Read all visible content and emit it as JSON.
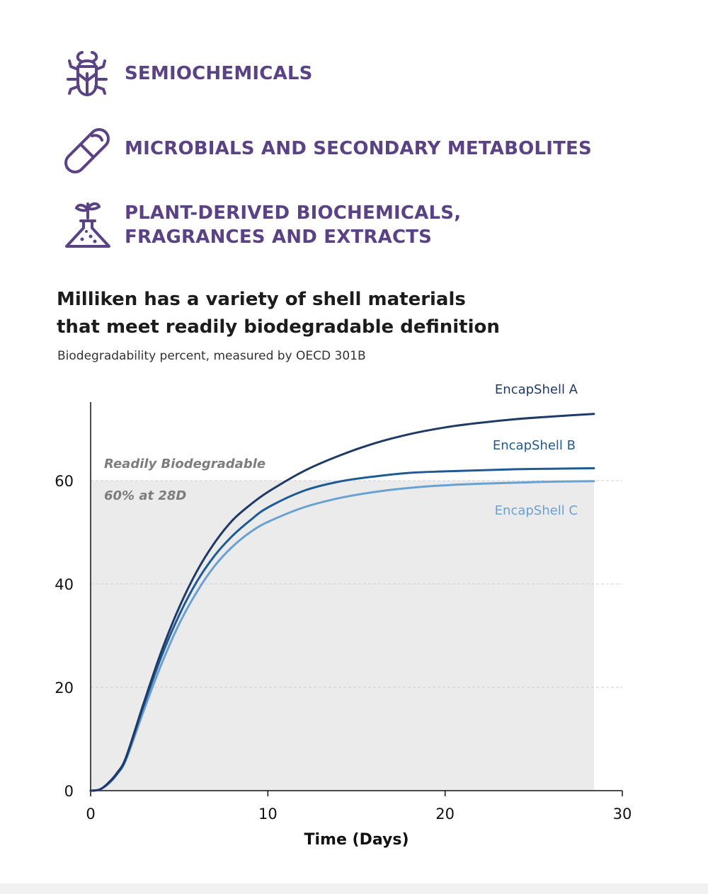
{
  "categories": [
    {
      "icon": "beetle-icon",
      "lines": [
        "SEMIOCHEMICALS"
      ]
    },
    {
      "icon": "capsule-icon",
      "lines": [
        "MICROBIALS AND SECONDARY METABOLITES"
      ]
    },
    {
      "icon": "flask-sprout-icon",
      "lines": [
        "PLANT-DERIVED BIOCHEMICALS,",
        "FRAGRANCES AND EXTRACTS"
      ]
    }
  ],
  "colors": {
    "accent_purple": "#5b4285",
    "series_a": "#1f3a66",
    "series_b": "#1e5a94",
    "series_c": "#6aa1d3",
    "band": "#ebebeb"
  },
  "chart_data": {
    "type": "line",
    "title_lines": [
      "Milliken has a variety of shell materials",
      "that meet readily biodegradable definition"
    ],
    "subtitle": "Biodegradability percent, measured by OECD 301B",
    "xlabel": "Time (Days)",
    "ylabel": "",
    "xlim": [
      0,
      30
    ],
    "ylim": [
      0,
      75
    ],
    "xticks": [
      0,
      10,
      20,
      30
    ],
    "yticks": [
      0,
      20,
      40,
      60
    ],
    "gridlines_y": [
      20,
      40,
      60
    ],
    "threshold": {
      "value": 60,
      "x_end": 28.4,
      "label_lines": [
        "Readily Biodegradable",
        "60% at 28D"
      ]
    },
    "series": [
      {
        "name": "EncapShell A",
        "x": [
          0,
          0.5,
          1,
          1.5,
          2,
          3,
          4,
          5,
          6,
          7,
          8,
          9,
          10,
          12,
          14,
          16,
          18,
          20,
          22,
          24,
          26,
          28.4
        ],
        "values": [
          0,
          0.2,
          1.5,
          3.5,
          6.5,
          17,
          27,
          35.5,
          42.5,
          48,
          52.3,
          55.3,
          57.8,
          61.8,
          64.8,
          67.2,
          69,
          70.3,
          71.2,
          71.9,
          72.4,
          72.9
        ]
      },
      {
        "name": "EncapShell B",
        "x": [
          0,
          0.5,
          1,
          1.5,
          2,
          3,
          4,
          5,
          6,
          7,
          8,
          9,
          10,
          12,
          14,
          16,
          18,
          20,
          22,
          24,
          26,
          28.4
        ],
        "values": [
          0,
          0.2,
          1.4,
          3.3,
          6.3,
          16.5,
          26,
          34,
          40.5,
          45.5,
          49.3,
          52.3,
          54.8,
          58,
          59.8,
          60.8,
          61.5,
          61.8,
          62,
          62.2,
          62.3,
          62.4
        ]
      },
      {
        "name": "EncapShell C",
        "x": [
          0,
          0.5,
          1,
          1.5,
          2,
          3,
          4,
          5,
          6,
          7,
          8,
          9,
          10,
          12,
          14,
          16,
          18,
          20,
          22,
          24,
          26,
          28.4
        ],
        "values": [
          0,
          0.2,
          1.3,
          3.2,
          6,
          15.5,
          24.5,
          32.3,
          38.5,
          43.5,
          47.2,
          50,
          52,
          54.8,
          56.6,
          57.8,
          58.6,
          59.1,
          59.4,
          59.6,
          59.8,
          59.9
        ]
      }
    ]
  }
}
